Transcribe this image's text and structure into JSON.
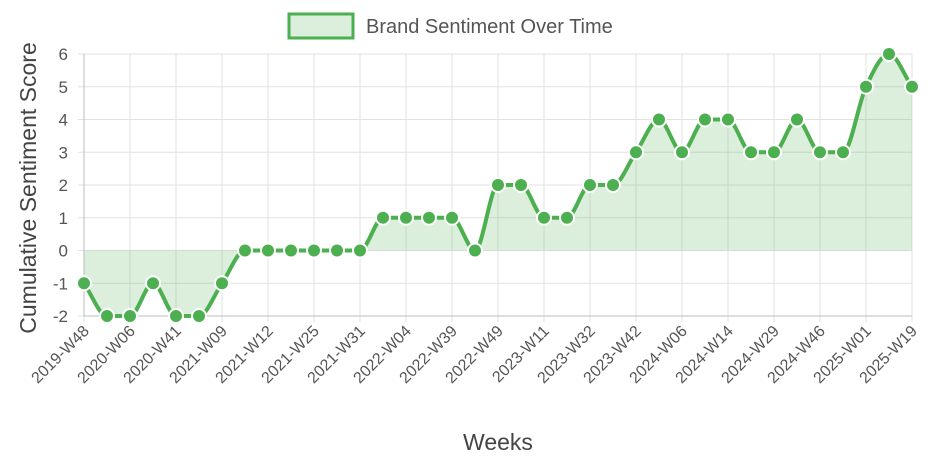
{
  "chart_data": {
    "type": "line",
    "title": "",
    "xlabel": "Weeks",
    "ylabel": "Cumulative Sentiment Score",
    "x_tick_labels": [
      "2019-W48",
      "2020-W06",
      "2020-W41",
      "2021-W09",
      "2021-W12",
      "2021-W25",
      "2021-W31",
      "2022-W04",
      "2022-W39",
      "2022-W49",
      "2023-W11",
      "2023-W32",
      "2023-W42",
      "2024-W06",
      "2024-W14",
      "2024-W29",
      "2024-W46",
      "2025-W01",
      "2025-W19"
    ],
    "y_ticks": [
      -2,
      -1,
      0,
      1,
      2,
      3,
      4,
      5,
      6
    ],
    "ylim": [
      -2,
      6
    ],
    "grid": true,
    "legend_position": "top",
    "colors": {
      "line": "#4caf50",
      "fill": "rgba(76,175,80,0.2)",
      "point": "#4caf50",
      "point_border": "#ffffff",
      "grid": "#e2e2e2",
      "axis": "#bdbdbd"
    },
    "series": [
      {
        "name": "Brand Sentiment Over Time",
        "values": [
          -1,
          -2,
          -2,
          -1,
          -2,
          -2,
          -1,
          0,
          0,
          0,
          0,
          0,
          0,
          1,
          1,
          1,
          1,
          0,
          2,
          2,
          1,
          1,
          2,
          2,
          3,
          4,
          3,
          4,
          4,
          3,
          3,
          4,
          3,
          3,
          5,
          6,
          5
        ],
        "fill": true
      }
    ]
  }
}
